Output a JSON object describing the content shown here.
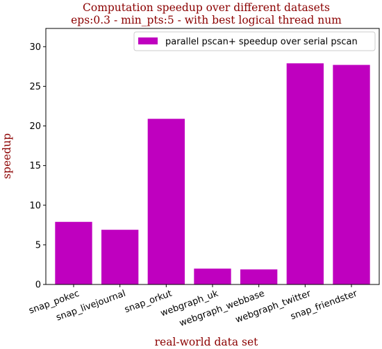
{
  "chart_data": {
    "type": "bar",
    "title_lines": [
      "Computation speedup over different datasets",
      "eps:0.3 - min_pts:5 - with best logical thread num"
    ],
    "xlabel": "real-world data set",
    "ylabel": "speedup",
    "categories": [
      "snap_pokec",
      "snap_livejournal",
      "snap_orkut",
      "webgraph_uk",
      "webgraph_webbase",
      "webgraph_twitter",
      "snap_friendster"
    ],
    "series": [
      {
        "name": "parallel pscan+ speedup over serial pscan",
        "values": [
          7.9,
          6.9,
          20.9,
          2.0,
          1.9,
          27.9,
          27.7
        ],
        "color": "#bf00bf"
      }
    ],
    "yticks": [
      0,
      5,
      10,
      15,
      20,
      25,
      30
    ],
    "ylim": [
      0,
      32.3
    ],
    "legend_position": "top-right",
    "grid": false
  }
}
